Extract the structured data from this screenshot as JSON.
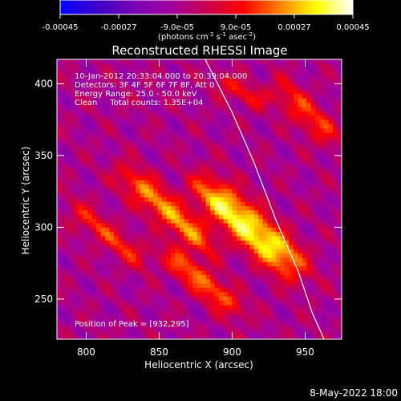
{
  "chart_data": {
    "type": "heatmap",
    "title": "Reconstructed RHESSI Image",
    "xlabel": "Heliocentric X (arcsec)",
    "ylabel": "Heliocentric Y (arcsec)",
    "xlim": [
      780,
      975
    ],
    "ylim": [
      222,
      417
    ],
    "x_ticks": [
      "800",
      "850",
      "900",
      "950"
    ],
    "y_ticks": [
      "250",
      "300",
      "350",
      "400"
    ],
    "annotations": [
      "10-Jan-2012 20:33:04.000 to 20:39:04.000",
      "Detectors: 3F 4F 5F 6F 7F 8F, Att 0",
      "Energy Range: 25.0 - 50.0 keV",
      "Clean     Total counts: 1.35E+04"
    ],
    "peak_label": "Position of Peak = [932,295]",
    "peak": [
      932,
      295
    ],
    "colorbar": {
      "tick_labels": [
        "-0.00045",
        "-0.00027",
        "-9.0e-05",
        "9.0e-05",
        "0.00027",
        "0.00045"
      ],
      "unit_base": "(photons cm",
      "unit_exp1": "-2",
      "unit_mid1": " s",
      "unit_exp2": "-1",
      "unit_mid2": " asec",
      "unit_exp3": "-2",
      "unit_end": ")",
      "range": [
        -0.00045,
        0.00045
      ],
      "stops": [
        "#0000ff",
        "#3c00c8",
        "#7800b4",
        "#a000a0",
        "#c80050",
        "#ff0000",
        "#ff8000",
        "#ffff00",
        "#ffffff"
      ]
    },
    "limb_curve": [
      [
        880,
        420
      ],
      [
        900,
        380
      ],
      [
        915,
        345
      ],
      [
        930,
        305
      ],
      [
        945,
        270
      ],
      [
        955,
        240
      ],
      [
        963,
        222
      ]
    ],
    "ridges": [
      {
        "x0": 912,
        "y0": 300,
        "angle_deg": -42,
        "len": 95,
        "width": 9,
        "peak": 0.00045
      },
      {
        "x0": 855,
        "y0": 312,
        "angle_deg": -42,
        "len": 85,
        "width": 7,
        "peak": 0.00032
      },
      {
        "x0": 880,
        "y0": 262,
        "angle_deg": -40,
        "len": 70,
        "width": 6,
        "peak": 0.00028
      },
      {
        "x0": 815,
        "y0": 295,
        "angle_deg": -38,
        "len": 70,
        "width": 6,
        "peak": 0.0002
      },
      {
        "x0": 950,
        "y0": 380,
        "angle_deg": -45,
        "len": 60,
        "width": 7,
        "peak": 0.00022
      },
      {
        "x0": 905,
        "y0": 395,
        "angle_deg": -30,
        "len": 40,
        "width": 5,
        "peak": 0.00018
      }
    ]
  },
  "footer": {
    "date": "8-May-2022 18:00"
  }
}
